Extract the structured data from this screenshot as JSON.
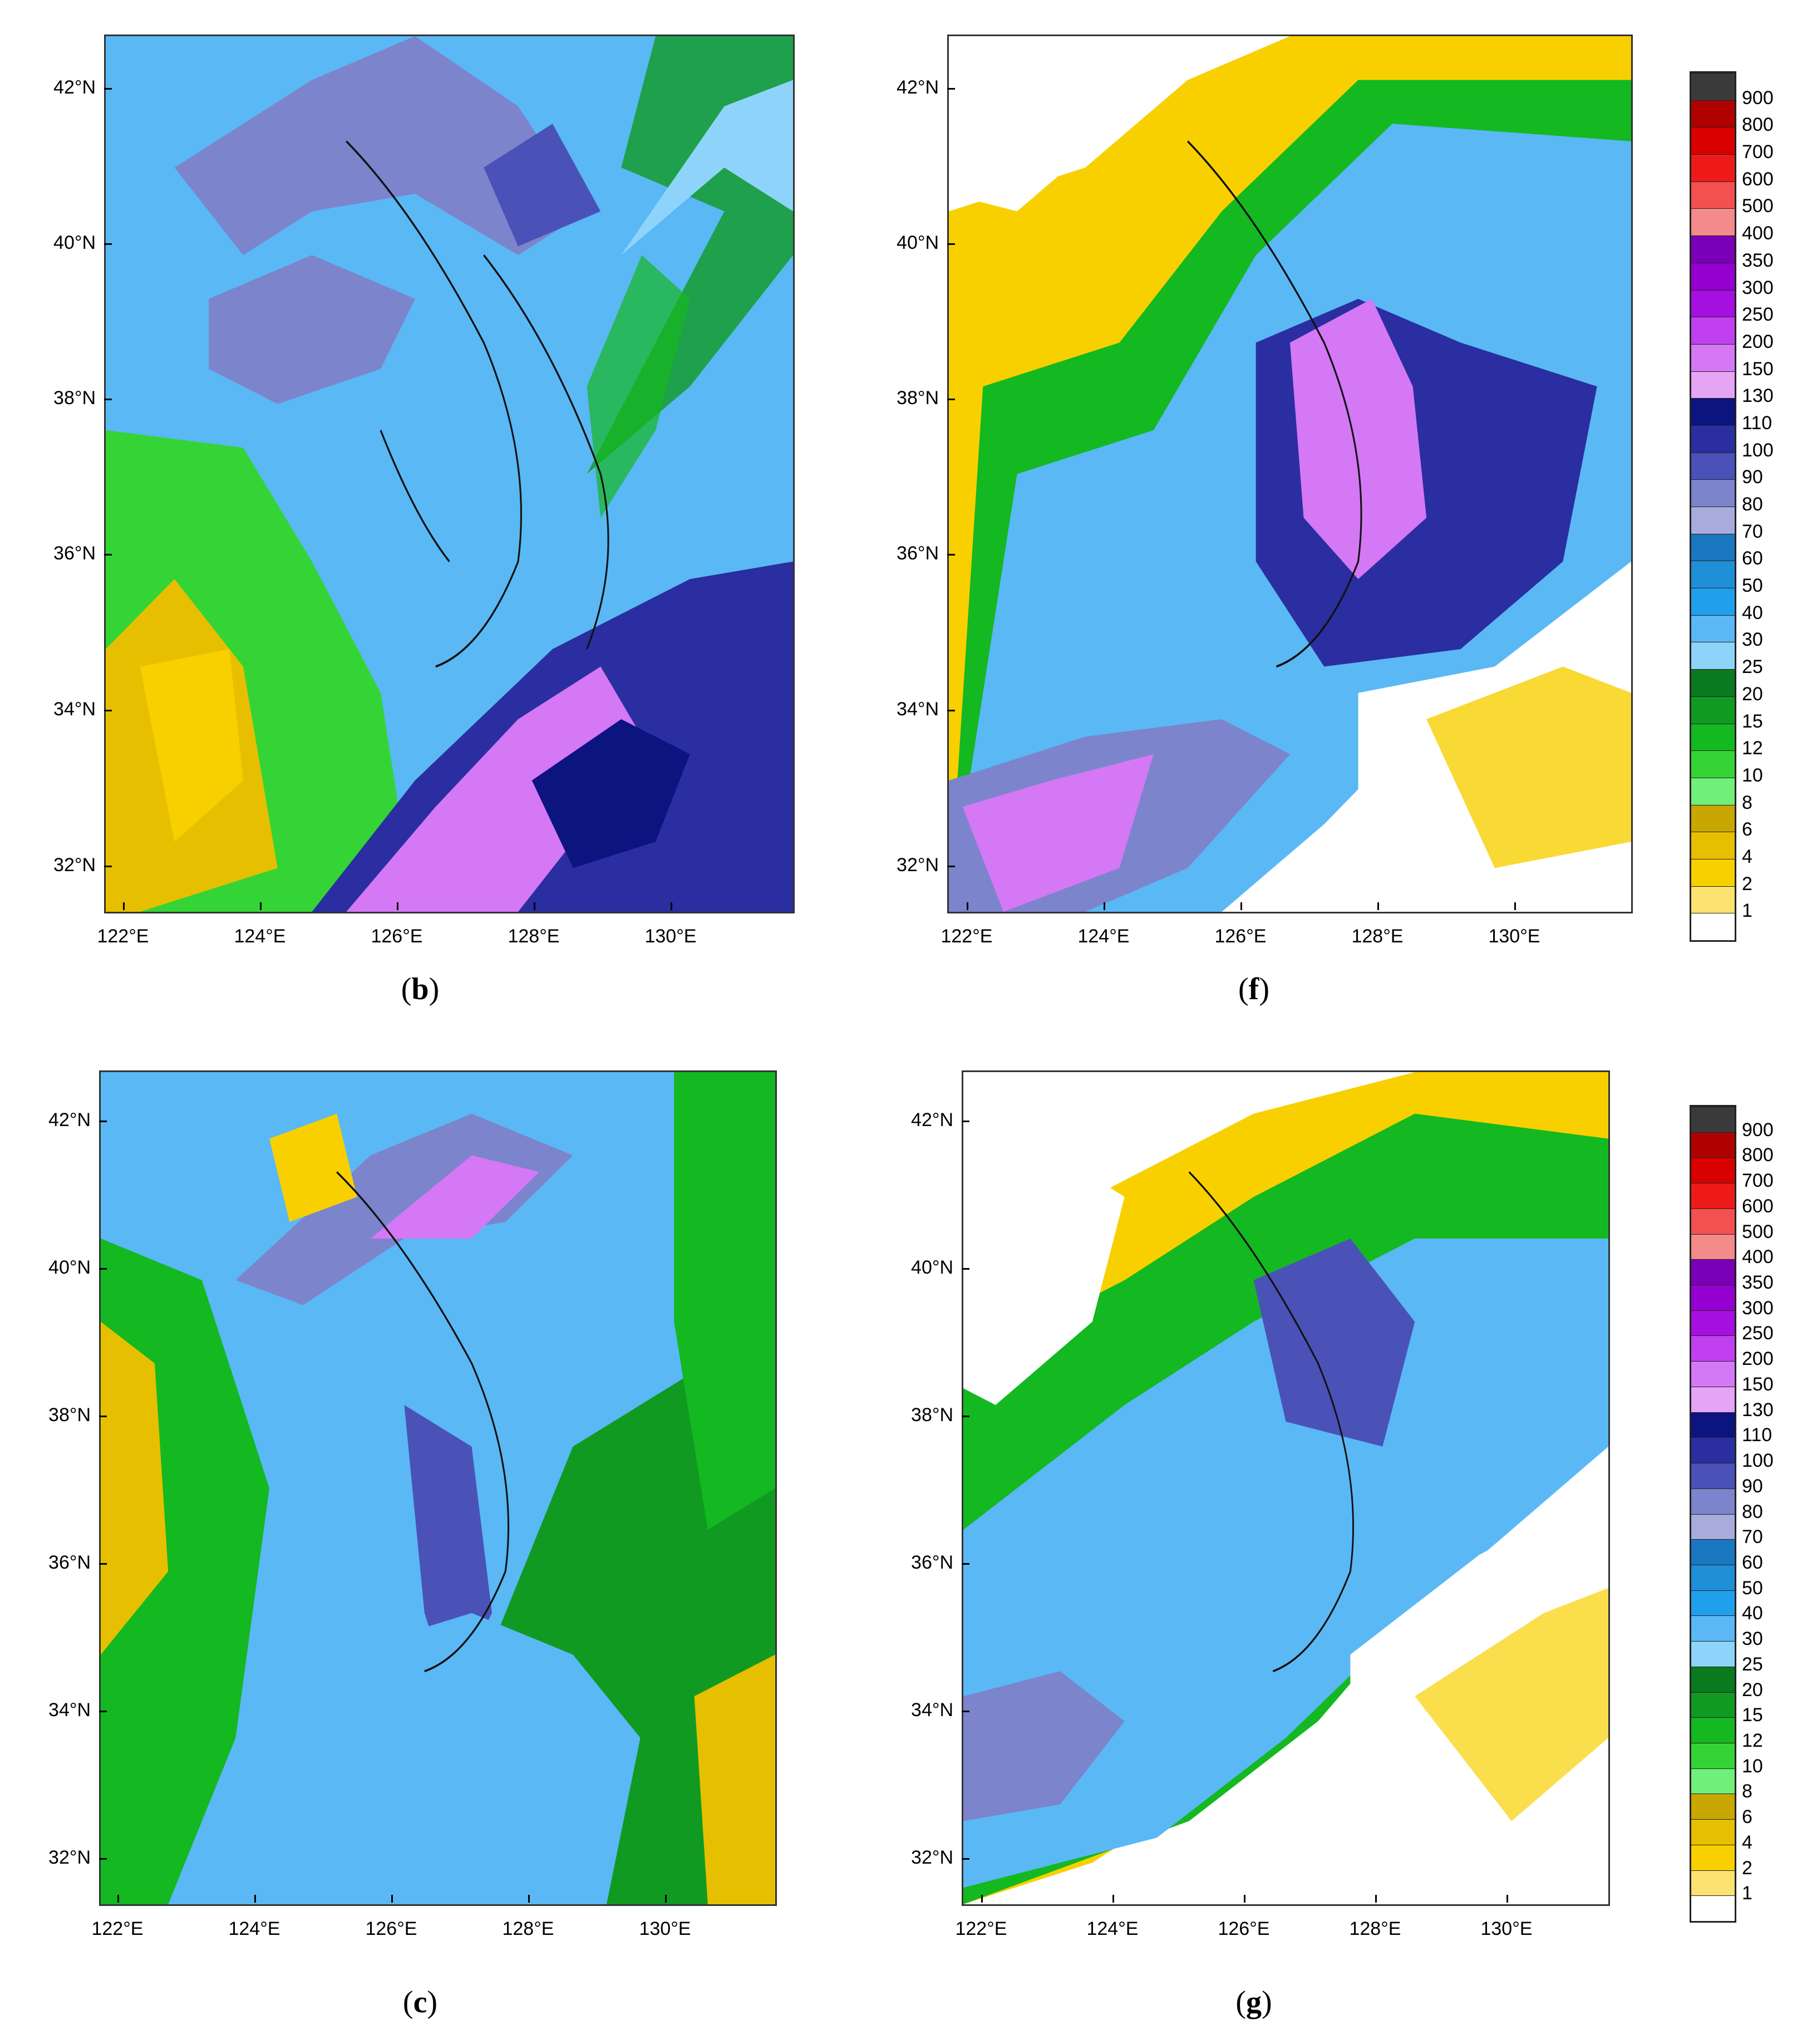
{
  "panels": [
    {
      "id": "b",
      "caption": "b"
    },
    {
      "id": "f",
      "caption": "f"
    },
    {
      "id": "c",
      "caption": "c"
    },
    {
      "id": "g",
      "caption": "g"
    }
  ],
  "axes": {
    "latitude_labels": [
      "42°N",
      "40°N",
      "38°N",
      "36°N",
      "34°N",
      "32°N"
    ],
    "longitude_labels": [
      "122°E",
      "124°E",
      "126°E",
      "128°E",
      "130°E"
    ]
  },
  "colorbar": {
    "levels": [
      "900",
      "800",
      "700",
      "600",
      "500",
      "400",
      "350",
      "300",
      "250",
      "200",
      "150",
      "130",
      "110",
      "100",
      "90",
      "80",
      "70",
      "60",
      "50",
      "40",
      "30",
      "25",
      "20",
      "15",
      "12",
      "10",
      "8",
      "6",
      "4",
      "2",
      "1"
    ],
    "colors": [
      "#3a3a3a",
      "#b00000",
      "#d80000",
      "#ee1a1a",
      "#f35050",
      "#f58a8a",
      "#7a00b8",
      "#9400d0",
      "#a510e0",
      "#c040f0",
      "#d478f5",
      "#e6a4f5",
      "#0c1480",
      "#2a2ea0",
      "#4a52b8",
      "#7c84cc",
      "#a8acdc",
      "#1a78c0",
      "#1f8fd8",
      "#20a0ec",
      "#5ab8f4",
      "#8ed4fa",
      "#0a7a1e",
      "#109a22",
      "#14b820",
      "#34d436",
      "#70f07a",
      "#c8a800",
      "#e6c000",
      "#f8d000",
      "#fce270",
      "#ffffff"
    ]
  }
}
